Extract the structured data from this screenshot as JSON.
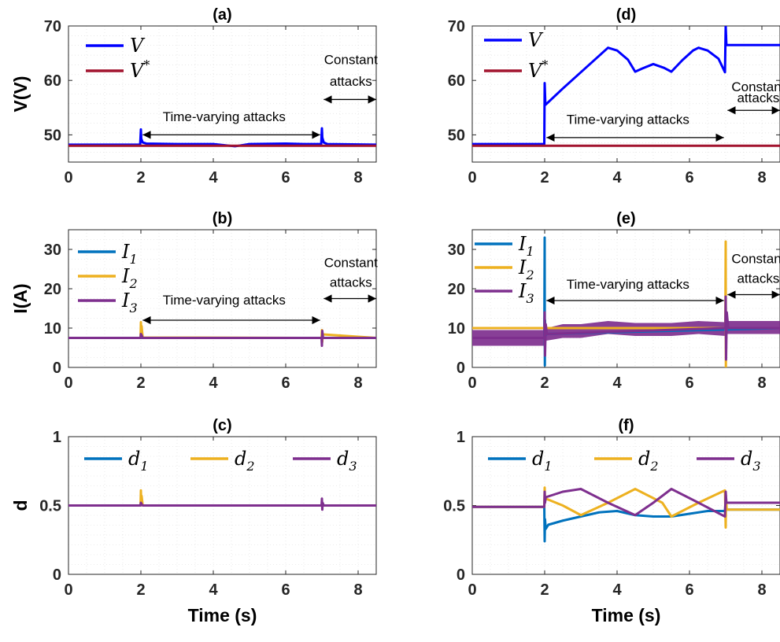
{
  "chart_data": [
    {
      "id": "a",
      "type": "line",
      "title": "(a)",
      "ylabel": "V(V)",
      "xlabel": "",
      "xlim": [
        0,
        8.5
      ],
      "ylim": [
        45,
        70
      ],
      "xticks": [
        "0",
        "2",
        "4",
        "6",
        "8"
      ],
      "yticks": [
        "50",
        "60",
        "70"
      ],
      "grid": true,
      "legend_placement": "top-left",
      "series": [
        {
          "name": "V",
          "sup": "",
          "color": "#0000ff",
          "x": [
            0,
            1.98,
            2.0,
            2.01,
            2.05,
            2.15,
            3,
            4,
            4.6,
            5,
            6,
            6.5,
            6.98,
            7.0,
            7.01,
            7.05,
            7.15,
            8.5
          ],
          "y": [
            48.2,
            48.2,
            51,
            49.3,
            48.6,
            48.4,
            48.3,
            48.3,
            47.9,
            48.3,
            48.4,
            48.3,
            48.3,
            51.2,
            49.5,
            48.6,
            48.3,
            48.2
          ]
        },
        {
          "name": "V",
          "sup": "*",
          "color": "#a2142f",
          "x": [
            0,
            8.5
          ],
          "y": [
            48,
            48
          ]
        }
      ],
      "annotations": [
        {
          "text": "Time-varying attacks",
          "x": 4.3,
          "y": 52.5,
          "arrow_from": 2.05,
          "arrow_to": 6.95,
          "arrow_y": 50
        },
        {
          "text": "Constant",
          "x": 7.8,
          "y": 63,
          "arrow_from": 7.05,
          "arrow_to": 8.5,
          "arrow_y": 56.5
        },
        {
          "text": "attacks",
          "x": 7.8,
          "y": 59
        }
      ]
    },
    {
      "id": "b",
      "type": "line",
      "title": "(b)",
      "ylabel": "I(A)",
      "xlabel": "",
      "xlim": [
        0,
        8.5
      ],
      "ylim": [
        0,
        35
      ],
      "xticks": [
        "0",
        "2",
        "4",
        "6",
        "8"
      ],
      "yticks": [
        "0",
        "10",
        "20",
        "30"
      ],
      "grid": true,
      "legend_placement": "top-left",
      "series": [
        {
          "name": "I",
          "sub": "1",
          "color": "#0072bd",
          "x": [
            0,
            2,
            2.05,
            7,
            7.05,
            8.5
          ],
          "y": [
            7.5,
            7.5,
            7.5,
            7.5,
            7.5,
            7.5
          ]
        },
        {
          "name": "I",
          "sub": "2",
          "color": "#edb120",
          "x": [
            0,
            1.99,
            2.0,
            2.01,
            2.02,
            2.05,
            6.99,
            7.0,
            7.01,
            7.02,
            8.5
          ],
          "y": [
            7.5,
            7.5,
            11.5,
            8.5,
            10.5,
            7.6,
            7.5,
            9.5,
            6.5,
            8.4,
            7.5
          ]
        },
        {
          "name": "I",
          "sub": "3",
          "color": "#7e2f8e",
          "x": [
            0,
            1.99,
            2.0,
            2.02,
            2.05,
            6.99,
            7.0,
            7.01,
            7.03,
            8.5
          ],
          "y": [
            7.5,
            7.5,
            8.5,
            8.2,
            7.5,
            7.5,
            5.5,
            9.3,
            7.5,
            7.5
          ]
        }
      ],
      "annotations": [
        {
          "text": "Time-varying attacks",
          "x": 4.3,
          "y": 16,
          "arrow_from": 2.05,
          "arrow_to": 6.95,
          "arrow_y": 12
        },
        {
          "text": "Constant",
          "x": 7.8,
          "y": 25.5,
          "arrow_from": 7.05,
          "arrow_to": 8.5,
          "arrow_y": 17.5
        },
        {
          "text": "attacks",
          "x": 7.8,
          "y": 20.5
        }
      ]
    },
    {
      "id": "c",
      "type": "line",
      "title": "(c)",
      "ylabel": "d",
      "xlabel": "Time (s)",
      "xlim": [
        0,
        8.5
      ],
      "ylim": [
        0,
        1
      ],
      "xticks": [
        "0",
        "2",
        "4",
        "6",
        "8"
      ],
      "yticks": [
        "0",
        "0.5",
        "1"
      ],
      "grid": true,
      "legend_placement": "top (horizontal)",
      "series": [
        {
          "name": "d",
          "sub": "1",
          "color": "#0072bd",
          "x": [
            0,
            1.99,
            2.0,
            2.02,
            2.05,
            8.5
          ],
          "y": [
            0.5,
            0.5,
            0.53,
            0.51,
            0.5,
            0.5
          ]
        },
        {
          "name": "d",
          "sub": "2",
          "color": "#edb120",
          "x": [
            0,
            1.99,
            2.0,
            2.01,
            2.02,
            2.05,
            8.5
          ],
          "y": [
            0.5,
            0.5,
            0.61,
            0.52,
            0.57,
            0.5,
            0.5
          ]
        },
        {
          "name": "d",
          "sub": "3",
          "color": "#7e2f8e",
          "x": [
            0,
            1.99,
            2.0,
            2.02,
            2.05,
            6.99,
            7.0,
            7.01,
            7.02,
            7.05,
            8.5
          ],
          "y": [
            0.5,
            0.5,
            0.52,
            0.51,
            0.5,
            0.5,
            0.55,
            0.47,
            0.52,
            0.5,
            0.5
          ]
        }
      ],
      "annotations": []
    },
    {
      "id": "d",
      "type": "line",
      "title": "(d)",
      "ylabel": "",
      "xlabel": "",
      "xlim": [
        0,
        8.5
      ],
      "ylim": [
        45,
        70
      ],
      "xticks": [
        "0",
        "2",
        "4",
        "6",
        "8"
      ],
      "yticks": [
        "50",
        "60",
        "70"
      ],
      "grid": true,
      "legend_placement": "top-left",
      "series": [
        {
          "name": "V",
          "sup": "",
          "color": "#0000ff",
          "x": [
            0,
            1.99,
            2.0,
            2.02,
            2.1,
            2.5,
            3.0,
            3.5,
            3.75,
            4.0,
            4.3,
            4.5,
            4.7,
            5.0,
            5.3,
            5.5,
            5.8,
            6.1,
            6.25,
            6.5,
            6.8,
            6.98,
            7.0,
            7.02,
            7.1,
            8.5
          ],
          "y": [
            48.3,
            48.3,
            59.5,
            55.5,
            56,
            58.5,
            61.5,
            64.5,
            66,
            65.5,
            63.8,
            61.6,
            62.2,
            63,
            62.3,
            61.6,
            63.7,
            65.5,
            66,
            65.5,
            64,
            61.5,
            70,
            66.5,
            66.5,
            66.5
          ]
        },
        {
          "name": "V",
          "sup": "*",
          "color": "#a2142f",
          "x": [
            0,
            8.5
          ],
          "y": [
            48,
            48
          ]
        }
      ],
      "annotations": [
        {
          "text": "Time-varying attacks",
          "x": 4.3,
          "y": 52,
          "arrow_from": 2.05,
          "arrow_to": 6.95,
          "arrow_y": 49.5
        },
        {
          "text": "Constant",
          "x": 7.9,
          "y": 58,
          "arrow_from": 7.05,
          "arrow_to": 8.5,
          "arrow_y": 54.5
        },
        {
          "text": "attacks",
          "x": 7.9,
          "y": 56
        }
      ]
    },
    {
      "id": "e",
      "type": "line",
      "title": "(e)",
      "ylabel": "",
      "xlabel": "",
      "xlim": [
        0,
        8.5
      ],
      "ylim": [
        0,
        35
      ],
      "xticks": [
        "0",
        "2",
        "4",
        "6",
        "8"
      ],
      "yticks": [
        "0",
        "10",
        "20",
        "30"
      ],
      "grid": true,
      "legend_placement": "top-left",
      "band": {
        "x": [
          0,
          1.99,
          2.05,
          2.5,
          3.0,
          3.75,
          4.5,
          5.5,
          6.25,
          6.99,
          7.05,
          8.5
        ],
        "lo": [
          5.5,
          5.5,
          6.8,
          7.5,
          7.5,
          8.5,
          8,
          8,
          8.5,
          8,
          8.5,
          8.5
        ],
        "hi": [
          9.5,
          9.5,
          10,
          11,
          11,
          11.8,
          11.3,
          11.3,
          11.8,
          11.5,
          11.8,
          11.8
        ]
      },
      "series": [
        {
          "name": "I",
          "sub": "1",
          "color": "#0072bd",
          "x": [
            0,
            1.99,
            2.0,
            2.005,
            2.01,
            2.02,
            2.05,
            8.5
          ],
          "y": [
            7.5,
            7.5,
            33,
            0.5,
            12,
            8,
            8.5,
            10
          ]
        },
        {
          "name": "I",
          "sub": "2",
          "color": "#edb120",
          "x": [
            0,
            6.99,
            7.0,
            7.005,
            7.01,
            7.02,
            7.05,
            8.5
          ],
          "y": [
            10,
            10,
            32,
            0,
            14,
            11,
            10,
            10
          ]
        },
        {
          "name": "I",
          "sub": "3",
          "color": "#7e2f8e",
          "x": [
            0,
            1.99,
            2.0,
            2.01,
            2.03,
            2.06,
            6.99,
            7.0,
            7.01,
            7.03,
            7.07,
            8.5
          ],
          "y": [
            7.5,
            7.5,
            14,
            3,
            11,
            8.5,
            10,
            18,
            2,
            14,
            10,
            10
          ]
        }
      ],
      "annotations": [
        {
          "text": "Time-varying attacks",
          "x": 4.3,
          "y": 20,
          "arrow_from": 2.05,
          "arrow_to": 6.95,
          "arrow_y": 17
        },
        {
          "text": "Constant",
          "x": 7.9,
          "y": 26.5,
          "arrow_from": 7.05,
          "arrow_to": 8.5,
          "arrow_y": 18.5
        },
        {
          "text": "attacks",
          "x": 7.9,
          "y": 21.5
        }
      ]
    },
    {
      "id": "f",
      "type": "line",
      "title": "(f)",
      "ylabel": "",
      "xlabel": "Time (s)",
      "xlim": [
        0,
        8.5
      ],
      "ylim": [
        0,
        1
      ],
      "xticks": [
        "0",
        "2",
        "4",
        "6",
        "8"
      ],
      "yticks": [
        "0",
        "0.5",
        "1"
      ],
      "grid": true,
      "legend_placement": "top (horizontal)",
      "series": [
        {
          "name": "d",
          "sub": "1",
          "color": "#0072bd",
          "x": [
            0,
            1.99,
            2.0,
            2.01,
            2.03,
            2.1,
            2.5,
            3.0,
            3.5,
            4.0,
            4.5,
            5.0,
            5.5,
            6.0,
            6.5,
            6.98,
            7.0,
            7.02,
            7.05,
            8.5
          ],
          "y": [
            0.49,
            0.49,
            0.24,
            0.4,
            0.33,
            0.36,
            0.39,
            0.42,
            0.45,
            0.46,
            0.43,
            0.42,
            0.42,
            0.44,
            0.46,
            0.46,
            0.55,
            0.47,
            0.47,
            0.47
          ]
        },
        {
          "name": "d",
          "sub": "2",
          "color": "#edb120",
          "x": [
            0,
            1.99,
            2.0,
            2.01,
            2.03,
            2.5,
            3.0,
            3.75,
            4.5,
            5.25,
            5.5,
            6.25,
            6.98,
            7.0,
            7.01,
            7.03,
            8.5
          ],
          "y": [
            0.49,
            0.49,
            0.63,
            0.53,
            0.55,
            0.5,
            0.43,
            0.52,
            0.62,
            0.52,
            0.42,
            0.52,
            0.61,
            0.34,
            0.55,
            0.47,
            0.47
          ]
        },
        {
          "name": "d",
          "sub": "3",
          "color": "#7e2f8e",
          "x": [
            0,
            1.99,
            2.0,
            2.01,
            2.03,
            2.5,
            3.0,
            3.75,
            4.5,
            5.0,
            5.5,
            6.25,
            6.98,
            7.0,
            7.02,
            7.05,
            8.5
          ],
          "y": [
            0.49,
            0.49,
            0.6,
            0.52,
            0.56,
            0.6,
            0.62,
            0.52,
            0.43,
            0.52,
            0.62,
            0.52,
            0.42,
            0.6,
            0.52,
            0.52,
            0.52
          ]
        }
      ],
      "annotations": []
    }
  ]
}
